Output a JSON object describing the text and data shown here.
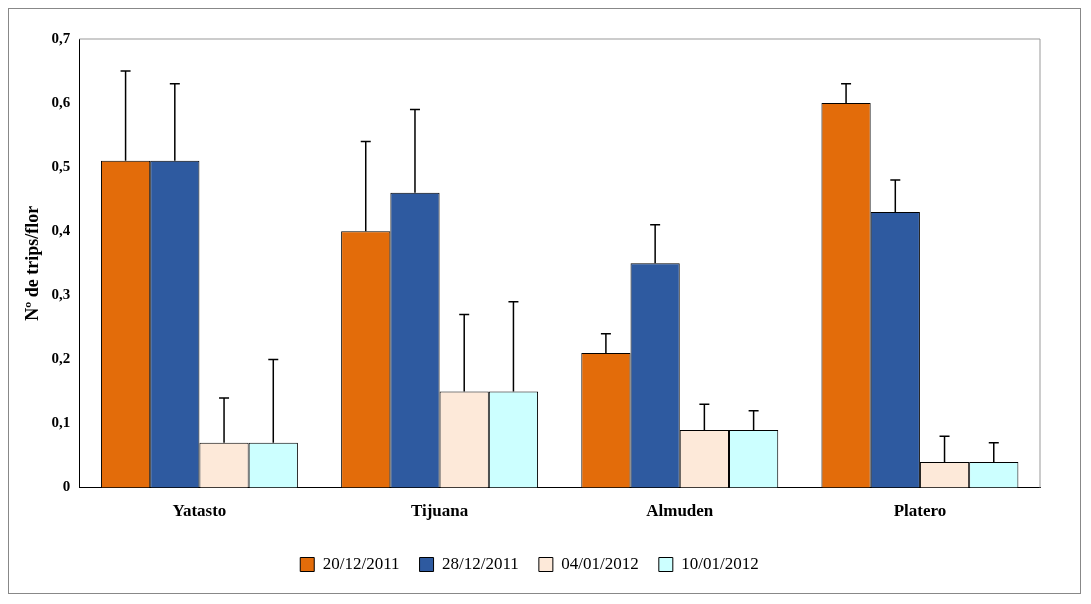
{
  "chart_data": {
    "type": "bar",
    "ylabel": "Nº de trips/flor",
    "categories": [
      "Yatasto",
      "Tijuana",
      "Almuden",
      "Platero"
    ],
    "series": [
      {
        "name": "20/12/2011",
        "color": "#e36c0a",
        "values": [
          0.51,
          0.4,
          0.21,
          0.6
        ],
        "errors": [
          [
            0.51,
            0.65
          ],
          [
            0.4,
            0.54
          ],
          [
            0.21,
            0.24
          ],
          [
            0.6,
            0.63
          ]
        ]
      },
      {
        "name": "28/12/2011",
        "color": "#2e5aa0",
        "values": [
          0.51,
          0.46,
          0.35,
          0.43
        ],
        "errors": [
          [
            0.51,
            0.63
          ],
          [
            0.46,
            0.59
          ],
          [
            0.35,
            0.41
          ],
          [
            0.43,
            0.48
          ]
        ]
      },
      {
        "name": "04/01/2012",
        "color": "#fde9d9",
        "values": [
          0.07,
          0.15,
          0.09,
          0.04
        ],
        "errors": [
          [
            0.07,
            0.14
          ],
          [
            0.15,
            0.27
          ],
          [
            0.09,
            0.13
          ],
          [
            0.04,
            0.08
          ]
        ]
      },
      {
        "name": "10/01/2012",
        "color": "#ccffff",
        "values": [
          0.07,
          0.15,
          0.09,
          0.04
        ],
        "errors": [
          [
            0.07,
            0.2
          ],
          [
            0.15,
            0.29
          ],
          [
            0.09,
            0.12
          ],
          [
            0.04,
            0.07
          ]
        ]
      }
    ],
    "ylim": [
      0,
      0.7
    ],
    "yticks": [
      0,
      {
        "value": 0.1,
        "label": "0,1"
      },
      {
        "value": 0.2,
        "label": "0,2"
      },
      {
        "value": 0.3,
        "label": "0,3"
      },
      {
        "value": 0.4,
        "label": "0,4"
      },
      {
        "value": 0.5,
        "label": "0,5"
      },
      {
        "value": 0.6,
        "label": "0,6"
      },
      {
        "value": 0.7,
        "label": "0,7"
      }
    ],
    "grid": false,
    "legend": "bottom"
  }
}
